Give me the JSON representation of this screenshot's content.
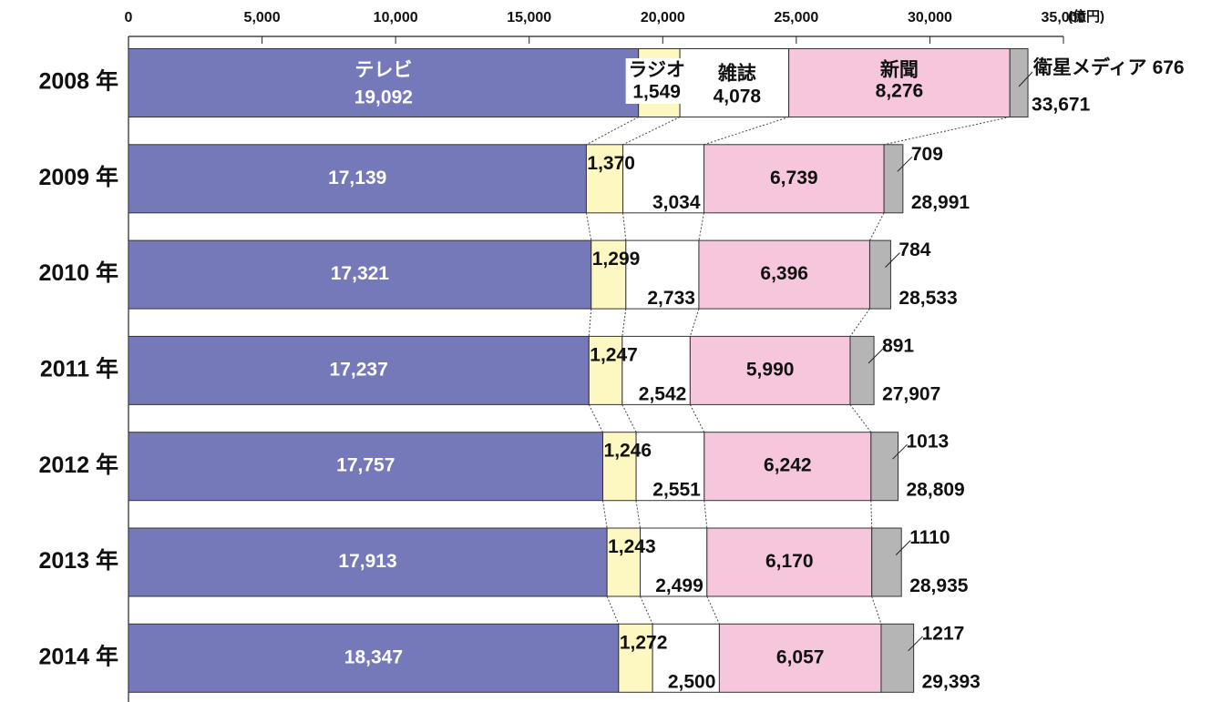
{
  "chart_data": {
    "type": "bar",
    "orientation": "horizontal",
    "stacked": true,
    "unit": "(億円)",
    "categories": [
      "2008 年",
      "2009 年",
      "2010 年",
      "2011 年",
      "2012 年",
      "2013 年",
      "2014 年"
    ],
    "series": [
      {
        "name": "テレビ",
        "color": "#7579b9",
        "values": [
          19092,
          17139,
          17321,
          17237,
          17757,
          17913,
          18347
        ],
        "value_labels": [
          "19,092",
          "17,139",
          "17,321",
          "17,237",
          "17,757",
          "17,913",
          "18,347"
        ]
      },
      {
        "name": "ラジオ",
        "color": "#fdf8c2",
        "values": [
          1549,
          1370,
          1299,
          1247,
          1246,
          1243,
          1272
        ],
        "value_labels": [
          "1,549",
          "1,370",
          "1,299",
          "1,247",
          "1,246",
          "1,243",
          "1,272"
        ]
      },
      {
        "name": "雑誌",
        "color": "#ffffff",
        "values": [
          4078,
          3034,
          2733,
          2542,
          2551,
          2499,
          2500
        ],
        "value_labels": [
          "4,078",
          "3,034",
          "2,733",
          "2,542",
          "2,551",
          "2,499",
          "2,500"
        ]
      },
      {
        "name": "新聞",
        "color": "#f6c7dc",
        "values": [
          8276,
          6739,
          6396,
          5990,
          6242,
          6170,
          6057
        ],
        "value_labels": [
          "8,276",
          "6,739",
          "6,396",
          "5,990",
          "6,242",
          "6,170",
          "6,057"
        ]
      },
      {
        "name": "衛星メディア",
        "color": "#b5b5b5",
        "values": [
          676,
          709,
          784,
          891,
          1013,
          1110,
          1217
        ]
      }
    ],
    "totals": {
      "values": [
        33671,
        28991,
        28533,
        27907,
        28809,
        28935,
        29393
      ],
      "value_labels": [
        "33,671",
        "28,991",
        "28,533",
        "27,907",
        "28,809",
        "28,935",
        "29,393"
      ]
    },
    "xlim": [
      0,
      35000
    ],
    "xticks": [
      0,
      {
        "value": 5000,
        "label": "5,000"
      },
      {
        "value": 10000,
        "label": "10,000"
      },
      {
        "value": 15000,
        "label": "15,000"
      },
      {
        "value": 20000,
        "label": "20,000"
      },
      {
        "value": 25000,
        "label": "25,000"
      },
      {
        "value": 30000,
        "label": "30,000"
      },
      {
        "value": 35000,
        "label": "35,000"
      }
    ]
  }
}
